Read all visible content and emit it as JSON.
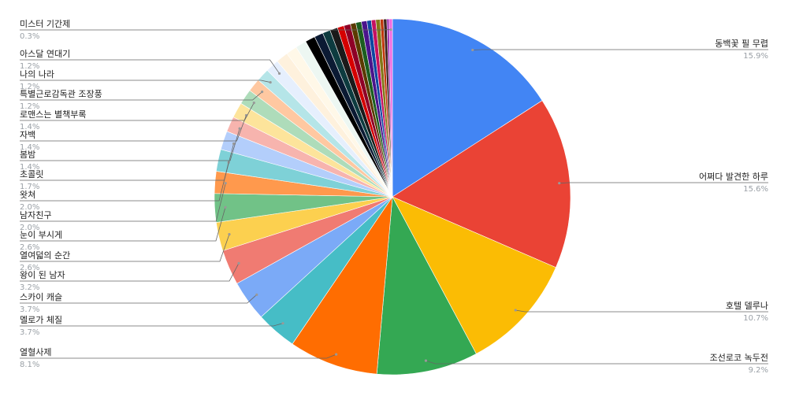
{
  "chart_data": {
    "type": "pie",
    "categories": [
      "동백꽃 필 무렵",
      "어쩌다 발견한 하루",
      "호텔 델루나",
      "조선로코 녹두전",
      "열혈사제",
      "멜로가 체질",
      "스카이 캐슬",
      "왕이 된 남자",
      "열여덟의 순간",
      "눈이 부시게",
      "남자친구",
      "왓쳐",
      "초콜릿",
      "봄밤",
      "자백",
      "로맨스는 별책부록",
      "특별근로감독관 조장풍",
      "나의 나라",
      "아스달 연대기",
      null,
      null,
      null,
      null,
      null,
      null,
      null,
      null,
      null,
      null,
      null,
      null,
      null,
      null,
      null,
      null,
      null,
      null,
      "미스터 기간제"
    ],
    "values": [
      15.9,
      15.6,
      10.7,
      9.2,
      8.1,
      3.7,
      3.7,
      3.2,
      2.6,
      2.6,
      2.0,
      2.0,
      1.7,
      1.4,
      1.4,
      1.4,
      1.2,
      1.2,
      1.2,
      1.1,
      1.0,
      1.0,
      0.9,
      0.8,
      0.7,
      0.7,
      0.6,
      0.6,
      0.5,
      0.5,
      0.5,
      0.4,
      0.4,
      0.4,
      0.3,
      0.3,
      0.2,
      0.3
    ],
    "value_labels": [
      "15.9%",
      "15.6%",
      "10.7%",
      "9.2%",
      "8.1%",
      "3.7%",
      "3.7%",
      "3.2%",
      "2.6%",
      "2.6%",
      "2.0%",
      "2.0%",
      "1.7%",
      "1.4%",
      "1.4%",
      "1.4%",
      "1.2%",
      "1.2%",
      "1.2%",
      null,
      null,
      null,
      null,
      null,
      null,
      null,
      null,
      null,
      null,
      null,
      null,
      null,
      null,
      null,
      null,
      null,
      null,
      "0.3%"
    ],
    "colors": [
      "#4285f4",
      "#ea4335",
      "#fbbc04",
      "#34a853",
      "#ff6d01",
      "#46bdc6",
      "#7baaf7",
      "#f07b72",
      "#fcd04f",
      "#71c287",
      "#ff994d",
      "#7ed1d7",
      "#b3cefb",
      "#f7b4ae",
      "#fde49b",
      "#aedcba",
      "#ffc8a1",
      "#b5e5e8",
      "#e6effd",
      "#fef1dd",
      "#fff8e8",
      "#edf7f2",
      "#000000",
      "#0b1a33",
      "#0d3b3f",
      "#1a1a1a",
      "#d50000",
      "#8e0026",
      "#5b3a00",
      "#1b5e20",
      "#4a148c",
      "#0d47a1",
      "#c51162",
      "#827717",
      "#bf360c",
      "#3e2723",
      "#9c27b0",
      "#f06be0"
    ]
  }
}
